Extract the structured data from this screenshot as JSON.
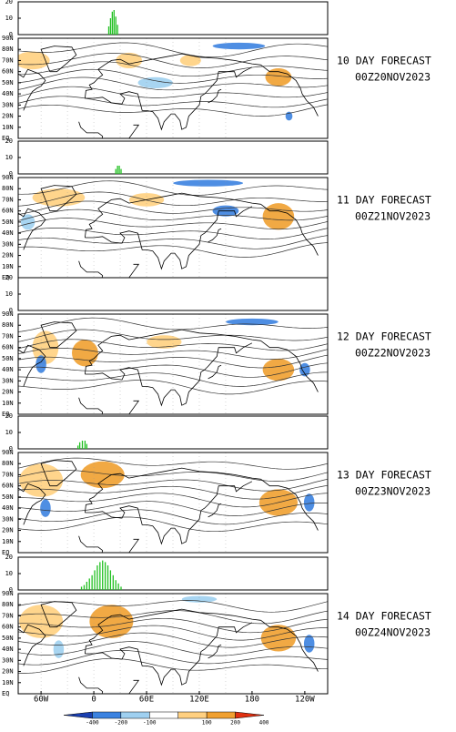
{
  "panels": [
    {
      "title": "10 DAY FORECAST",
      "date": "00Z20NOV2023",
      "bars": {
        "x": [
          17,
          19,
          21,
          23,
          25,
          27
        ],
        "values": [
          5,
          10,
          14,
          15,
          11,
          6
        ]
      }
    },
    {
      "title": "11 DAY FORECAST",
      "date": "00Z21NOV2023",
      "bars": {
        "x": [
          25,
          27,
          29,
          31
        ],
        "values": [
          3,
          5,
          5,
          3
        ]
      }
    },
    {
      "title": "12 DAY FORECAST",
      "date": "00Z22NOV2023",
      "bars": {
        "x": [],
        "values": []
      }
    },
    {
      "title": "13 DAY FORECAST",
      "date": "00Z23NOV2023",
      "bars": {
        "x": [
          -18,
          -16,
          -13,
          -10,
          -8
        ],
        "values": [
          2,
          4,
          5,
          5,
          3
        ]
      }
    },
    {
      "title": "14 DAY FORECAST",
      "date": "00Z24NOV2023",
      "bars": {
        "x": [
          -14,
          -11,
          -8,
          -5,
          -2,
          1,
          4,
          7,
          10,
          13,
          16,
          19,
          22,
          25,
          28,
          31
        ],
        "values": [
          2,
          3,
          5,
          7,
          9,
          12,
          15,
          17,
          18,
          17,
          15,
          12,
          9,
          6,
          4,
          2
        ]
      }
    }
  ],
  "map": {
    "xlim": [
      -86,
      266
    ],
    "xticks": [
      {
        "value": -60,
        "label": "60W"
      },
      0,
      {
        "value": 60,
        "label": "60E"
      },
      {
        "value": 120,
        "label": "120E"
      },
      180,
      {
        "value": 240,
        "label": "120W"
      }
    ],
    "ylim": [
      0,
      90
    ],
    "yticks": [
      {
        "value": 90,
        "label": "90N"
      },
      {
        "value": 80,
        "label": "80N"
      },
      {
        "value": 70,
        "label": "70N"
      },
      {
        "value": 60,
        "label": "60N"
      },
      {
        "value": 50,
        "label": "50N"
      },
      {
        "value": 40,
        "label": "40N"
      },
      {
        "value": 30,
        "label": "30N"
      },
      {
        "value": 20,
        "label": "20N"
      },
      {
        "value": 10,
        "label": "10N"
      },
      {
        "value": 0,
        "label": "EQ"
      }
    ]
  },
  "bar_axis": {
    "ylim": [
      0,
      20
    ],
    "yticks": [
      0,
      10,
      20
    ],
    "color": "#22c022"
  },
  "colorbar": {
    "ticks": [
      -400,
      -200,
      -100,
      100,
      200,
      400
    ],
    "colors": [
      "#1a3fb0",
      "#3b82e0",
      "#9fd0f0",
      "#ffffff",
      "#ffd080",
      "#f0a030",
      "#e03010"
    ]
  }
}
